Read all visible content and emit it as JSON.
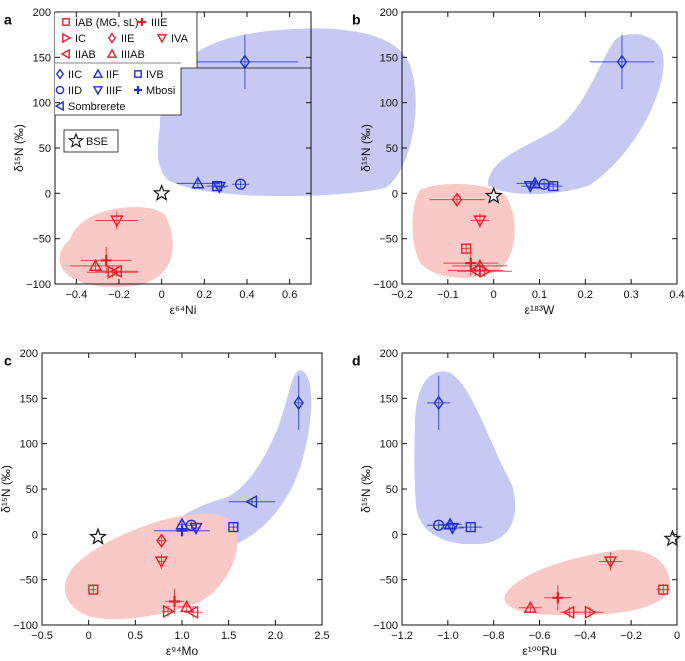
{
  "figure": {
    "colors": {
      "red": "#e0212a",
      "blue": "#1f2fc8",
      "red_fill": "#f9c9c7",
      "blue_fill": "#c7c9f2",
      "axis": "#111111"
    },
    "legend": {
      "red_items": [
        {
          "label": "IAB (MG, sL)",
          "marker": "square"
        },
        {
          "label": "IIIE",
          "marker": "plus"
        },
        {
          "label": "IC",
          "marker": "triangle-right"
        },
        {
          "label": "IIE",
          "marker": "diamond"
        },
        {
          "label": "IVA",
          "marker": "triangle-down"
        },
        {
          "label": "IIAB",
          "marker": "triangle-left"
        },
        {
          "label": "IIIAB",
          "marker": "triangle-up"
        }
      ],
      "blue_items": [
        {
          "label": "IIC",
          "marker": "diamond"
        },
        {
          "label": "IIF",
          "marker": "triangle-up"
        },
        {
          "label": "IVB",
          "marker": "square"
        },
        {
          "label": "IID",
          "marker": "circle"
        },
        {
          "label": "IIIF",
          "marker": "triangle-down"
        },
        {
          "label": "Mbosi",
          "marker": "plus"
        },
        {
          "label": "Sombrerete",
          "marker": "triangle-left"
        }
      ],
      "bse_label": "BSE"
    }
  },
  "chart_data": [
    {
      "panel": "a",
      "type": "scatter",
      "xlabel": "ε⁶⁴Ni",
      "ylabel": "δ¹⁵N (‰)",
      "xlim": [
        -0.5,
        0.7
      ],
      "ylim": [
        -100,
        200
      ],
      "xticks": [
        -0.4,
        -0.2,
        0,
        0.2,
        0.4,
        0.6
      ],
      "yticks": [
        -100,
        -50,
        0,
        50,
        100,
        150,
        200
      ],
      "xtick_labels": [
        "−0.4",
        "−0.2",
        "0",
        "0.2",
        "0.4",
        "0.6"
      ],
      "ytick_labels": [
        "−100",
        "−50",
        "0",
        "50",
        "100",
        "150",
        "200"
      ],
      "points": [
        {
          "group": "IIC",
          "marker": "diamond",
          "color": "blue",
          "x": 0.39,
          "y": 145,
          "xerr": 0.25,
          "yerr": 30
        },
        {
          "group": "IIF",
          "marker": "triangle-up",
          "color": "blue",
          "x": 0.17,
          "y": 11,
          "xerr": 0.1,
          "yerr": 4
        },
        {
          "group": "IVB",
          "marker": "square",
          "color": "blue",
          "x": 0.26,
          "y": 8,
          "xerr": 0.05,
          "yerr": 4
        },
        {
          "group": "IIIF",
          "marker": "triangle-down",
          "color": "blue",
          "x": 0.27,
          "y": 7,
          "xerr": 0.03,
          "yerr": 4
        },
        {
          "group": "IID",
          "marker": "circle",
          "color": "blue",
          "x": 0.37,
          "y": 10,
          "xerr": 0.04,
          "yerr": 4
        },
        {
          "group": "IVA",
          "marker": "triangle-down",
          "color": "red",
          "x": -0.21,
          "y": -30,
          "xerr": 0.1,
          "yerr": 10
        },
        {
          "group": "IIIE",
          "marker": "plus",
          "color": "red",
          "x": -0.26,
          "y": -74,
          "xerr": 0.12,
          "yerr": 15
        },
        {
          "group": "IIIAB",
          "marker": "triangle-up",
          "color": "red",
          "x": -0.31,
          "y": -80,
          "xerr": 0.12,
          "yerr": 6
        },
        {
          "group": "IIAB",
          "marker": "triangle-left",
          "color": "red",
          "x": -0.21,
          "y": -86,
          "xerr": 0.1,
          "yerr": 6
        },
        {
          "group": "IC",
          "marker": "triangle-right",
          "color": "red",
          "x": -0.23,
          "y": -87,
          "xerr": 0.12,
          "yerr": 6
        },
        {
          "group": "BSE",
          "marker": "star",
          "color": "black",
          "x": 0.0,
          "y": 0,
          "xerr": 0,
          "yerr": 0
        }
      ]
    },
    {
      "panel": "b",
      "type": "scatter",
      "xlabel": "ε¹⁸³W",
      "ylabel": "δ¹⁵N (‰)",
      "xlim": [
        -0.2,
        0.4
      ],
      "ylim": [
        -100,
        200
      ],
      "xticks": [
        -0.2,
        -0.1,
        0,
        0.1,
        0.2,
        0.3,
        0.4
      ],
      "yticks": [
        -100,
        -50,
        0,
        50,
        100,
        150,
        200
      ],
      "xtick_labels": [
        "−0.2",
        "−0.1",
        "0",
        "0.1",
        "0.2",
        "0.3",
        "0.4"
      ],
      "ytick_labels": [
        "−100",
        "−50",
        "0",
        "50",
        "100",
        "150",
        "200"
      ],
      "points": [
        {
          "group": "IIC",
          "marker": "diamond",
          "color": "blue",
          "x": 0.28,
          "y": 145,
          "xerr": 0.07,
          "yerr": 30
        },
        {
          "group": "IIF",
          "marker": "triangle-up",
          "color": "blue",
          "x": 0.09,
          "y": 11,
          "xerr": 0.04,
          "yerr": 4
        },
        {
          "group": "IIIF",
          "marker": "triangle-down",
          "color": "blue",
          "x": 0.08,
          "y": 8,
          "xerr": 0.02,
          "yerr": 4
        },
        {
          "group": "IID",
          "marker": "circle",
          "color": "blue",
          "x": 0.11,
          "y": 10,
          "xerr": 0.03,
          "yerr": 4
        },
        {
          "group": "IVB",
          "marker": "square",
          "color": "blue",
          "x": 0.13,
          "y": 8,
          "xerr": 0.02,
          "yerr": 4
        },
        {
          "group": "IIE",
          "marker": "diamond",
          "color": "red",
          "x": -0.08,
          "y": -7,
          "xerr": 0.06,
          "yerr": 6
        },
        {
          "group": "IVA",
          "marker": "triangle-down",
          "color": "red",
          "x": -0.03,
          "y": -30,
          "xerr": 0.02,
          "yerr": 8
        },
        {
          "group": "IAB (MG, sL)",
          "marker": "square",
          "color": "red",
          "x": -0.06,
          "y": -61,
          "xerr": 0.01,
          "yerr": 4
        },
        {
          "group": "IIIE",
          "marker": "plus",
          "color": "red",
          "x": -0.05,
          "y": -77,
          "xerr": 0.06,
          "yerr": 14
        },
        {
          "group": "IIIAB",
          "marker": "triangle-up",
          "color": "red",
          "x": -0.03,
          "y": -80,
          "xerr": 0.06,
          "yerr": 6
        },
        {
          "group": "IIAB",
          "marker": "triangle-left",
          "color": "red",
          "x": -0.04,
          "y": -85,
          "xerr": 0.06,
          "yerr": 6
        },
        {
          "group": "IC",
          "marker": "triangle-right",
          "color": "red",
          "x": -0.02,
          "y": -86,
          "xerr": 0.06,
          "yerr": 6
        },
        {
          "group": "BSE",
          "marker": "star",
          "color": "black",
          "x": 0.0,
          "y": -3,
          "xerr": 0,
          "yerr": 0
        }
      ]
    },
    {
      "panel": "c",
      "type": "scatter",
      "xlabel": "ε⁹⁴Mo",
      "ylabel": "δ¹⁵N (‰)",
      "xlim": [
        -0.5,
        2.5
      ],
      "ylim": [
        -100,
        200
      ],
      "xticks": [
        -0.5,
        0,
        0.5,
        1.0,
        1.5,
        2.0,
        2.5
      ],
      "yticks": [
        -100,
        -50,
        0,
        50,
        100,
        150,
        200
      ],
      "xtick_labels": [
        "−0.5",
        "0",
        "0.5",
        "1.0",
        "1.5",
        "2.0",
        "2.5"
      ],
      "ytick_labels": [
        "−100",
        "−50",
        "0",
        "50",
        "100",
        "150",
        "200"
      ],
      "points": [
        {
          "group": "IIC",
          "marker": "diamond",
          "color": "blue",
          "x": 2.25,
          "y": 145,
          "xerr": 0.05,
          "yerr": 30
        },
        {
          "group": "Sombrerete",
          "marker": "triangle-left",
          "color": "blue",
          "x": 1.75,
          "y": 36,
          "xerr": 0.25,
          "yerr": 4
        },
        {
          "group": "IVB",
          "marker": "square",
          "color": "blue",
          "x": 1.55,
          "y": 8,
          "xerr": 0.05,
          "yerr": 4
        },
        {
          "group": "IID",
          "marker": "circle",
          "color": "blue",
          "x": 1.1,
          "y": 10,
          "xerr": 0.05,
          "yerr": 4
        },
        {
          "group": "IIF",
          "marker": "triangle-up",
          "color": "blue",
          "x": 1.0,
          "y": 11,
          "xerr": 0.05,
          "yerr": 4
        },
        {
          "group": "IIIF",
          "marker": "triangle-down",
          "color": "blue",
          "x": 1.15,
          "y": 7,
          "xerr": 0.05,
          "yerr": 4
        },
        {
          "group": "Mbosi",
          "marker": "plus",
          "color": "blue",
          "x": 1.0,
          "y": 4,
          "xerr": 0.3,
          "yerr": 6
        },
        {
          "group": "IAB (MG, sL)",
          "marker": "square",
          "color": "red",
          "x": 0.05,
          "y": -61,
          "xerr": 0.03,
          "yerr": 4
        },
        {
          "group": "IIE",
          "marker": "diamond",
          "color": "red",
          "x": 0.78,
          "y": -7,
          "xerr": 0.04,
          "yerr": 6
        },
        {
          "group": "IVA",
          "marker": "triangle-down",
          "color": "red",
          "x": 0.78,
          "y": -30,
          "xerr": 0.04,
          "yerr": 8
        },
        {
          "group": "IIIE",
          "marker": "plus",
          "color": "red",
          "x": 0.92,
          "y": -74,
          "xerr": 0.1,
          "yerr": 14
        },
        {
          "group": "IIIAB",
          "marker": "triangle-up",
          "color": "red",
          "x": 1.05,
          "y": -80,
          "xerr": 0.1,
          "yerr": 6
        },
        {
          "group": "IC",
          "marker": "triangle-right",
          "color": "red",
          "x": 0.85,
          "y": -85,
          "xerr": 0.06,
          "yerr": 6
        },
        {
          "group": "IIAB",
          "marker": "triangle-left",
          "color": "red",
          "x": 1.12,
          "y": -86,
          "xerr": 0.1,
          "yerr": 6
        },
        {
          "group": "BSE",
          "marker": "star",
          "color": "black",
          "x": 0.1,
          "y": -3,
          "xerr": 0,
          "yerr": 0
        }
      ]
    },
    {
      "panel": "d",
      "type": "scatter",
      "xlabel": "ε¹⁰⁰Ru",
      "ylabel": "δ¹⁵N (‰)",
      "xlim": [
        -1.2,
        0
      ],
      "ylim": [
        -100,
        200
      ],
      "xticks": [
        -1.2,
        -1.0,
        -0.8,
        -0.6,
        -0.4,
        -0.2,
        0
      ],
      "yticks": [
        -100,
        -50,
        0,
        50,
        100,
        150,
        200
      ],
      "xtick_labels": [
        "−1.2",
        "−1.0",
        "−0.8",
        "−0.6",
        "−0.4",
        "−0.2",
        "0"
      ],
      "ytick_labels": [
        "−100",
        "−50",
        "0",
        "50",
        "100",
        "150",
        "200"
      ],
      "points": [
        {
          "group": "IIC",
          "marker": "diamond",
          "color": "blue",
          "x": -1.04,
          "y": 145,
          "xerr": 0.05,
          "yerr": 30
        },
        {
          "group": "IID",
          "marker": "circle",
          "color": "blue",
          "x": -1.04,
          "y": 10,
          "xerr": 0.05,
          "yerr": 4
        },
        {
          "group": "IIF",
          "marker": "triangle-up",
          "color": "blue",
          "x": -0.99,
          "y": 11,
          "xerr": 0.05,
          "yerr": 4
        },
        {
          "group": "IIIF",
          "marker": "triangle-down",
          "color": "blue",
          "x": -0.98,
          "y": 7,
          "xerr": 0.05,
          "yerr": 4
        },
        {
          "group": "IVB",
          "marker": "square",
          "color": "blue",
          "x": -0.9,
          "y": 8,
          "xerr": 0.05,
          "yerr": 4
        },
        {
          "group": "IAB (MG, sL)",
          "marker": "square",
          "color": "red",
          "x": -0.06,
          "y": -61,
          "xerr": 0.03,
          "yerr": 6
        },
        {
          "group": "IVA",
          "marker": "triangle-down",
          "color": "red",
          "x": -0.29,
          "y": -30,
          "xerr": 0.05,
          "yerr": 10
        },
        {
          "group": "IIIE",
          "marker": "plus",
          "color": "red",
          "x": -0.52,
          "y": -70,
          "xerr": 0.06,
          "yerr": 14
        },
        {
          "group": "IIIAB",
          "marker": "triangle-up",
          "color": "red",
          "x": -0.64,
          "y": -81,
          "xerr": 0.05,
          "yerr": 6
        },
        {
          "group": "IIAB",
          "marker": "triangle-left",
          "color": "red",
          "x": -0.47,
          "y": -86,
          "xerr": 0.04,
          "yerr": 6
        },
        {
          "group": "IC",
          "marker": "triangle-right",
          "color": "red",
          "x": -0.38,
          "y": -86,
          "xerr": 0.06,
          "yerr": 6
        },
        {
          "group": "BSE",
          "marker": "star",
          "color": "black",
          "x": -0.02,
          "y": -5,
          "xerr": 0,
          "yerr": 0
        }
      ]
    }
  ]
}
